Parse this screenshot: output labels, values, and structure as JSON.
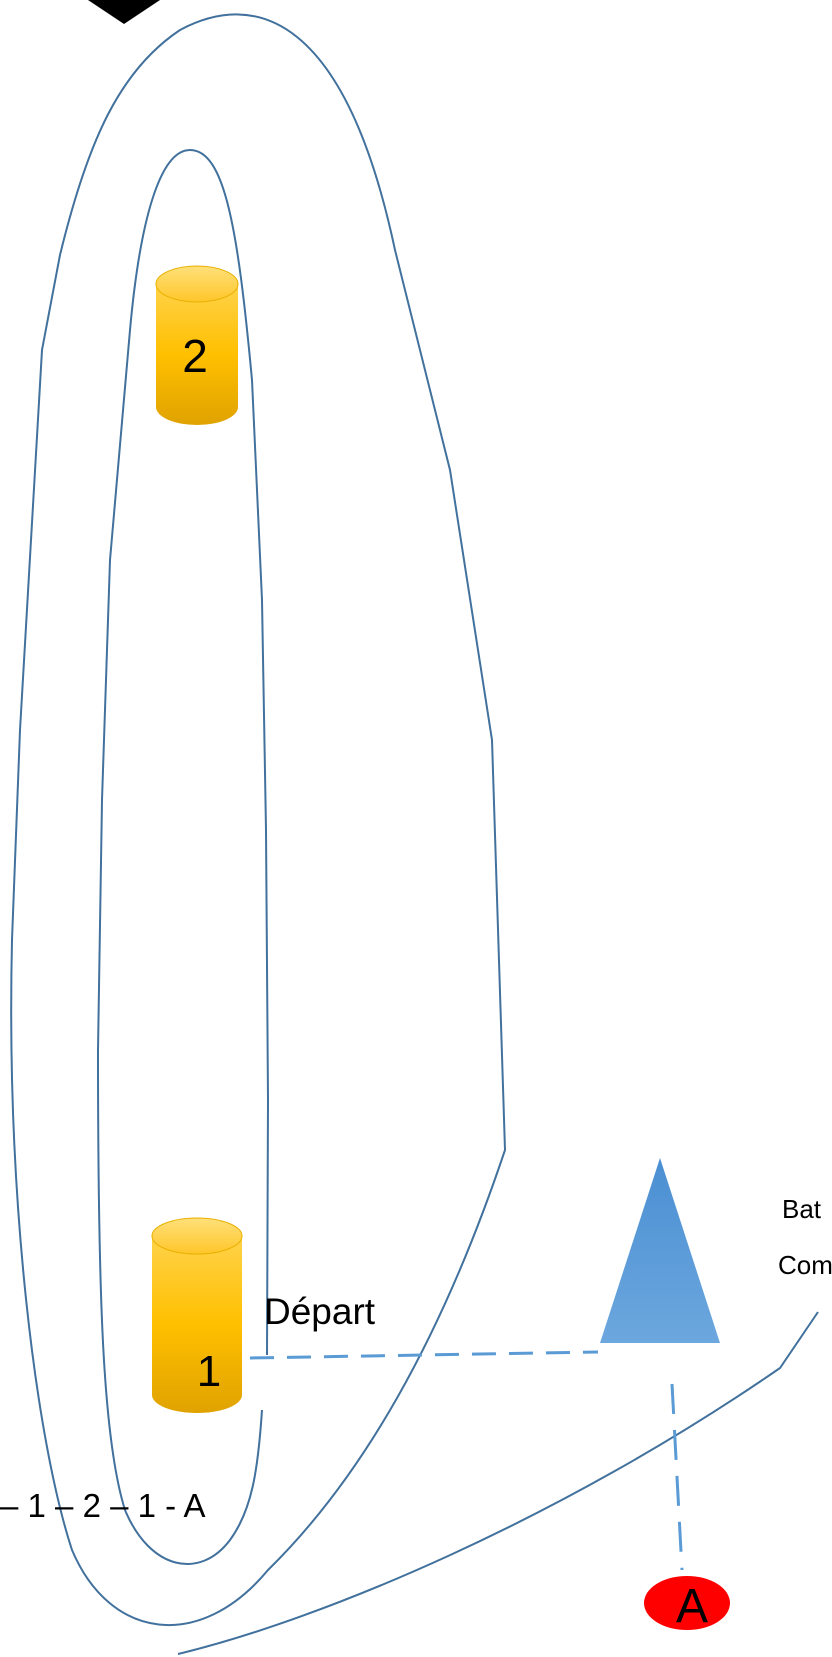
{
  "buoys": [
    {
      "id": "buoy-1",
      "label": "1",
      "shape": "cylinder",
      "color": "#FFC000"
    },
    {
      "id": "buoy-2",
      "label": "2",
      "shape": "cylinder",
      "color": "#FFC000"
    }
  ],
  "committee_boat": {
    "shape": "triangle",
    "color": "#5B9BD5"
  },
  "mark_a": {
    "label": "A",
    "color": "#FF0000"
  },
  "labels": {
    "start": "Départ",
    "bat_partial": "Bat",
    "com_partial": "Com",
    "course_order": "–  1 – 2 – 1 - A"
  },
  "colors": {
    "course_line": "#41719C",
    "start_line": "#5B9BD5"
  }
}
